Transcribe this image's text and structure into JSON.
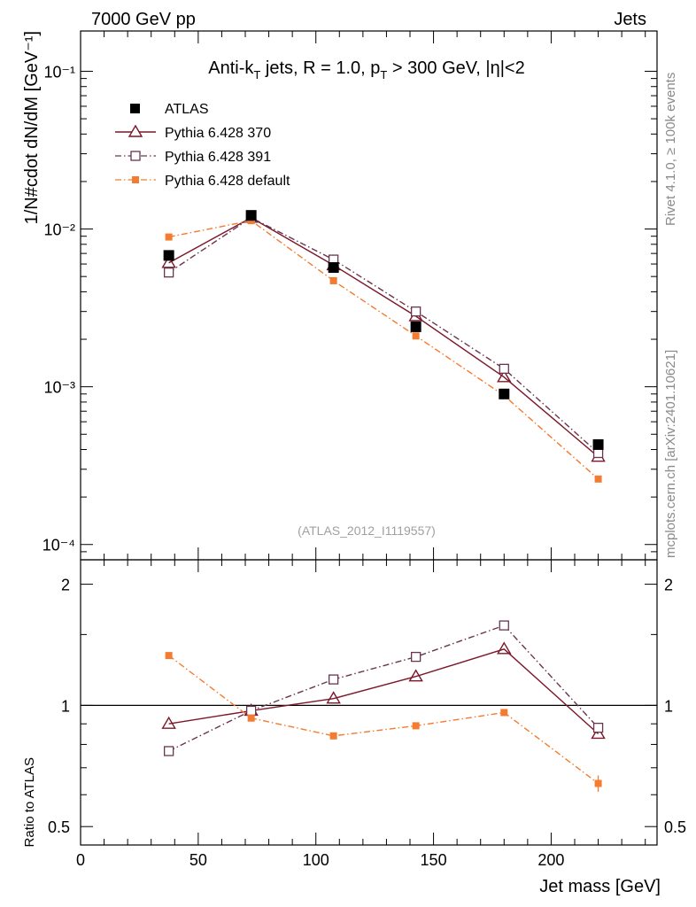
{
  "header": {
    "left": "7000 GeV pp",
    "right": "Jets"
  },
  "side_labels": {
    "rivet": "Rivet 4.1.0, ≥ 100k events",
    "mcplots": "mcplots.cern.ch [arXiv:2401.10621]"
  },
  "plot_title": {
    "part1": "Anti-k",
    "sub1": "T",
    "part2": " jets, R = 1.0, p",
    "sub2": "T",
    "part3": " > 300 GeV, |η|<2"
  },
  "watermark": "(ATLAS_2012_I1119557)",
  "colors": {
    "atlas": "#000000",
    "p370": "#7b1728",
    "p391": "#6a3550",
    "pdefault": "#f47c30"
  },
  "chart_data": [
    {
      "type": "line",
      "panel": "main",
      "yscale": "log",
      "ylabel": "1/N#cdot dN/dM [GeV⁻¹]",
      "ylim": [
        8e-05,
        0.18
      ],
      "xlim": [
        0,
        245
      ],
      "y_tick_labels": [
        "10⁻⁴",
        "10⁻³",
        "10⁻²",
        "10⁻¹"
      ],
      "legend_placement": "top-left",
      "series": [
        {
          "name": "ATLAS",
          "marker": "filled-square",
          "x": [
            37.5,
            72.5,
            107.5,
            142.5,
            180,
            220
          ],
          "values": [
            0.0068,
            0.0122,
            0.0057,
            0.0024,
            0.0009,
            0.00043
          ]
        },
        {
          "name": "Pythia 6.428 370",
          "marker": "open-triangle",
          "x": [
            37.5,
            72.5,
            107.5,
            142.5,
            180,
            220
          ],
          "values": [
            0.0061,
            0.0118,
            0.0059,
            0.0028,
            0.00115,
            0.00036
          ]
        },
        {
          "name": "Pythia 6.428 391",
          "marker": "open-square",
          "x": [
            37.5,
            72.5,
            107.5,
            142.5,
            180,
            220
          ],
          "values": [
            0.0053,
            0.0118,
            0.0064,
            0.003,
            0.0013,
            0.00038
          ]
        },
        {
          "name": "Pythia 6.428 default",
          "marker": "small-filled-square",
          "x": [
            37.5,
            72.5,
            107.5,
            142.5,
            180,
            220
          ],
          "values": [
            0.0089,
            0.0113,
            0.0047,
            0.0021,
            0.00088,
            0.00026
          ]
        }
      ]
    },
    {
      "type": "line",
      "panel": "ratio",
      "yscale": "log",
      "ylabel": "Ratio to ATLAS",
      "xlabel": "Jet mass [GeV]",
      "ylim": [
        0.45,
        2.3
      ],
      "xlim": [
        0,
        245
      ],
      "x_tick_labels": [
        "0",
        "50",
        "100",
        "150",
        "200"
      ],
      "y_tick_labels": [
        "0.5",
        "1",
        "2"
      ],
      "reference_line": 1,
      "series": [
        {
          "name": "Pythia 6.428 370",
          "x": [
            37.5,
            72.5,
            107.5,
            142.5,
            180,
            220
          ],
          "values": [
            0.9,
            0.97,
            1.04,
            1.18,
            1.38,
            0.85
          ]
        },
        {
          "name": "Pythia 6.428 391",
          "x": [
            37.5,
            72.5,
            107.5,
            142.5,
            180,
            220
          ],
          "values": [
            0.77,
            0.97,
            1.16,
            1.32,
            1.58,
            0.88
          ]
        },
        {
          "name": "Pythia 6.428 default",
          "x": [
            37.5,
            72.5,
            107.5,
            142.5,
            180,
            220
          ],
          "values": [
            1.33,
            0.93,
            0.84,
            0.89,
            0.96,
            0.64
          ],
          "errors": [
            0,
            0,
            0,
            0,
            0,
            0.03
          ]
        }
      ]
    }
  ]
}
